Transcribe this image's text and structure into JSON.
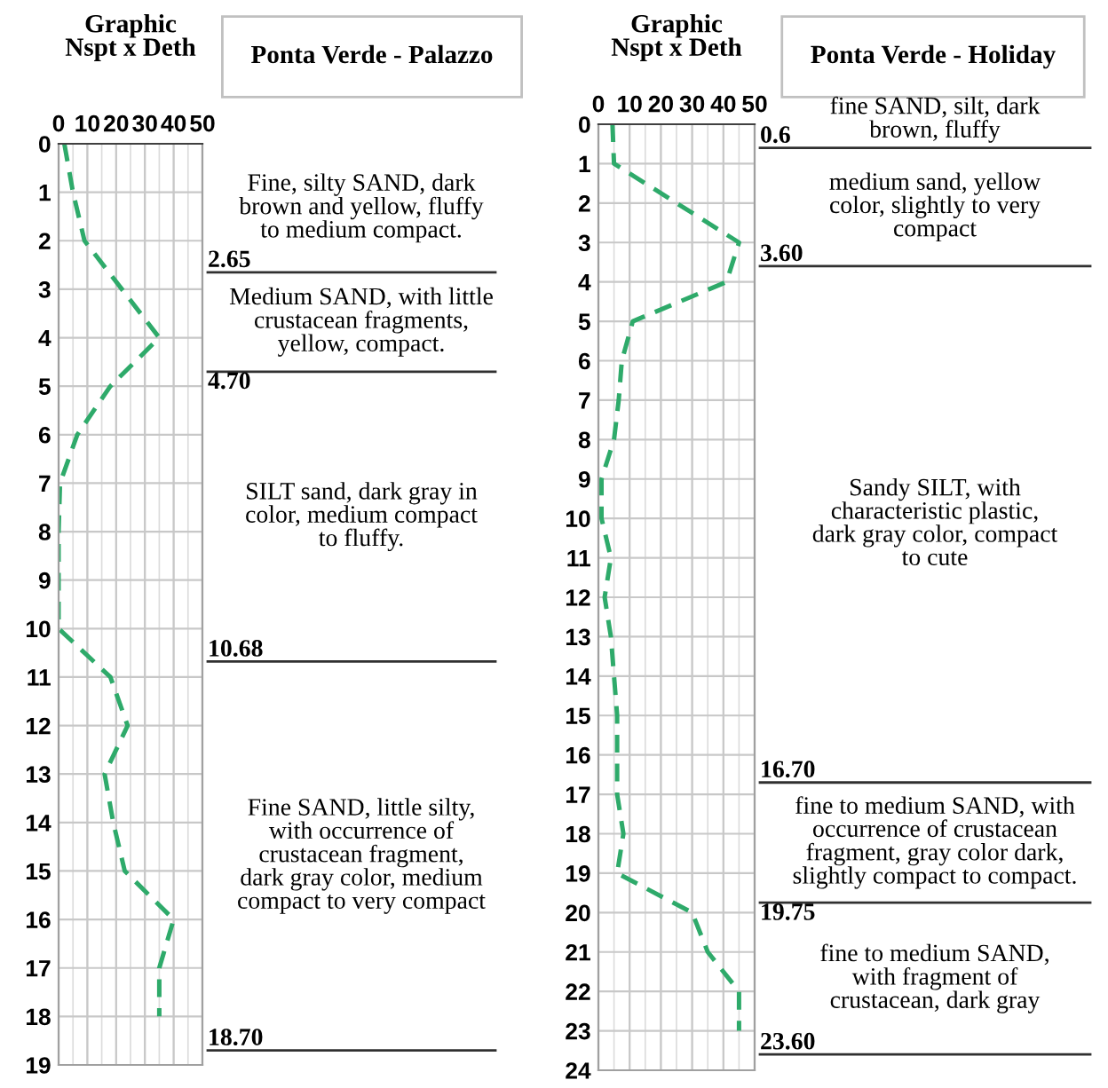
{
  "chart_data": [
    {
      "type": "line",
      "title": "Graphic\nNspt x Deth",
      "orientation": "horizontal",
      "line_style": "dashed",
      "marker": "none",
      "grid": true,
      "legend": false,
      "series": [
        {
          "color": "#2eaa6a",
          "x": [
            0,
            1,
            2,
            3,
            4,
            5,
            6,
            7,
            8,
            9,
            10,
            11,
            12,
            13,
            14,
            15,
            16,
            17,
            18
          ],
          "values": [
            2,
            5,
            9,
            22,
            35,
            18,
            6.5,
            0.5,
            0,
            0,
            0,
            18,
            24,
            16,
            19,
            23,
            40,
            35,
            35
          ]
        }
      ],
      "xlim": [
        0,
        50
      ],
      "xticks": [
        0,
        10,
        20,
        30,
        40,
        50
      ],
      "ylim": [
        19,
        0
      ],
      "yticks": [
        0,
        1,
        2,
        3,
        4,
        5,
        6,
        7,
        8,
        9,
        10,
        11,
        12,
        13,
        14,
        15,
        16,
        17,
        18,
        19
      ],
      "ref_lines": [
        {
          "axis": "y",
          "value": 2.65,
          "label": "2.65"
        },
        {
          "axis": "y",
          "value": 4.7,
          "label": "4.70"
        },
        {
          "axis": "y",
          "value": 10.68,
          "label": "10.68"
        },
        {
          "axis": "y",
          "value": 18.7,
          "label": "18.70"
        }
      ],
      "annotations": [
        "Ponta Verde - Palazzo",
        "Fine, silty SAND, dark\nbrown and yellow, fluffy\nto medium compact.",
        "Medium SAND, with little\ncrustacean fragments,\nyellow, compact.",
        "SILT sand, dark gray in\ncolor, medium compact\nto fluffy.",
        "Fine SAND, little silty,\nwith occurrence of\ncrustacean fragment,\ndark gray color, medium\ncompact to very compact"
      ]
    },
    {
      "type": "line",
      "title": "Graphic\nNspt x Deth",
      "orientation": "horizontal",
      "line_style": "dashed",
      "marker": "none",
      "grid": true,
      "legend": false,
      "series": [
        {
          "color": "#2eaa6a",
          "x": [
            0,
            1,
            2,
            3,
            4,
            5,
            6,
            7,
            8,
            9,
            10,
            11,
            12,
            13,
            14,
            15,
            16,
            17,
            18,
            19,
            20,
            21,
            22,
            23
          ],
          "values": [
            4.5,
            5,
            25,
            45,
            41,
            11,
            7.5,
            6.5,
            5,
            1,
            1,
            4,
            2,
            4,
            5,
            6,
            6,
            6,
            8,
            6,
            30,
            35,
            45,
            45
          ]
        }
      ],
      "xlim": [
        0,
        50
      ],
      "xticks": [
        0,
        10,
        20,
        30,
        40,
        50
      ],
      "ylim": [
        24,
        0
      ],
      "yticks": [
        0,
        1,
        2,
        3,
        4,
        5,
        6,
        7,
        8,
        9,
        10,
        11,
        12,
        13,
        14,
        15,
        16,
        17,
        18,
        19,
        20,
        21,
        22,
        23,
        24
      ],
      "ref_lines": [
        {
          "axis": "y",
          "value": 0.6,
          "label": "0.6"
        },
        {
          "axis": "y",
          "value": 3.6,
          "label": "3.60"
        },
        {
          "axis": "y",
          "value": 16.7,
          "label": "16.70"
        },
        {
          "axis": "y",
          "value": 19.75,
          "label": "19.75"
        },
        {
          "axis": "y",
          "value": 23.6,
          "label": "23.60"
        }
      ],
      "annotations": [
        "Ponta Verde - Holiday",
        "fine SAND, silt, dark\nbrown, fluffy",
        "medium sand, yellow\ncolor, slightly to very\ncompact",
        "Sandy SILT, with\ncharacteristic plastic,\ndark gray color, compact\nto cute",
        "fine to medium SAND, with\noccurrence of crustacean\nfragment, gray color dark,\nslightly compact to compact.",
        "fine to medium SAND,\nwith fragment of\ncrustacean, dark gray"
      ]
    }
  ]
}
